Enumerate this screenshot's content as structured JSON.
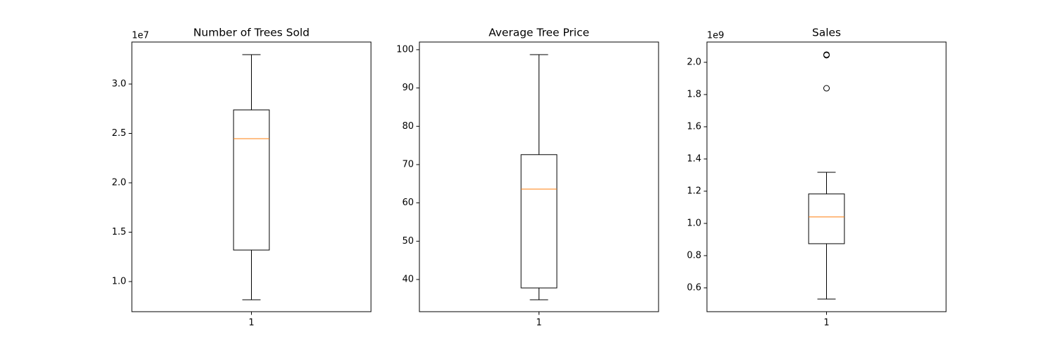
{
  "chart_data": [
    {
      "type": "box",
      "title": "Number of Trees Sold",
      "offset_label": "1e7",
      "categories": [
        "1"
      ],
      "box_color": "#000000",
      "median_color": "#ff7f0e",
      "ylim": [
        6950000,
        34255000
      ],
      "yticks": [
        {
          "value": 10000000,
          "label": "1.0"
        },
        {
          "value": 15000000,
          "label": "1.5"
        },
        {
          "value": 20000000,
          "label": "2.0"
        },
        {
          "value": 25000000,
          "label": "2.5"
        },
        {
          "value": 30000000,
          "label": "3.0"
        }
      ],
      "boxes": [
        {
          "whislo": 8160000,
          "q1": 13190000,
          "med": 24470000,
          "q3": 27380000,
          "whishi": 32980000,
          "fliers": []
        }
      ]
    },
    {
      "type": "box",
      "title": "Average Tree Price",
      "categories": [
        "1"
      ],
      "box_color": "#000000",
      "median_color": "#ff7f0e",
      "ylim": [
        31.6,
        102.0
      ],
      "yticks": [
        40,
        50,
        60,
        70,
        80,
        90,
        100
      ],
      "boxes": [
        {
          "whislo": 34.7,
          "q1": 37.8,
          "med": 63.6,
          "q3": 72.6,
          "whishi": 98.7,
          "fliers": []
        }
      ]
    },
    {
      "type": "box",
      "title": "Sales",
      "offset_label": "1e9",
      "categories": [
        "1"
      ],
      "box_color": "#000000",
      "median_color": "#ff7f0e",
      "ylim": [
        452000000,
        2126000000
      ],
      "yticks": [
        {
          "value": 600000000,
          "label": "0.6"
        },
        {
          "value": 800000000,
          "label": "0.8"
        },
        {
          "value": 1000000000,
          "label": "1.0"
        },
        {
          "value": 1200000000,
          "label": "1.2"
        },
        {
          "value": 1400000000,
          "label": "1.4"
        },
        {
          "value": 1600000000,
          "label": "1.6"
        },
        {
          "value": 1800000000,
          "label": "1.8"
        },
        {
          "value": 2000000000,
          "label": "2.0"
        }
      ],
      "boxes": [
        {
          "whislo": 530000000,
          "q1": 874000000,
          "med": 1040000000,
          "q3": 1183000000,
          "whishi": 1317000000,
          "fliers": [
            2044000000,
            2048000000,
            1839000000
          ]
        }
      ]
    }
  ]
}
